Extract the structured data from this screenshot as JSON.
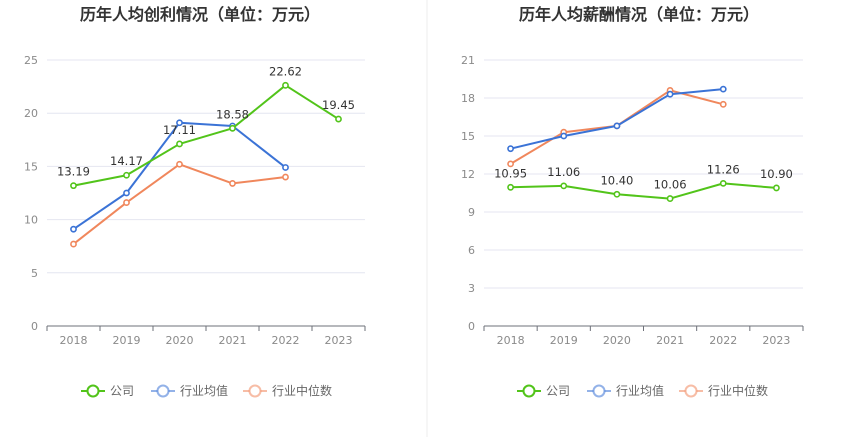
{
  "colors": {
    "company": "#52c41a",
    "industry_avg": "#3b73d6",
    "industry_median": "#f0875c",
    "grid": "#e4e6f0",
    "divider": "#eeeeee"
  },
  "legend": {
    "company": "公司",
    "industry_avg": "行业均值",
    "industry_median": "行业中位数"
  },
  "chart_data": [
    {
      "type": "line",
      "title": "历年人均创利情况（单位：万元）",
      "categories": [
        "2018",
        "2019",
        "2020",
        "2021",
        "2022",
        "2023"
      ],
      "ylim": [
        0,
        25
      ],
      "yticks": [
        0,
        5,
        10,
        15,
        20,
        25
      ],
      "grid": true,
      "legend_position": "bottom",
      "series": [
        {
          "name": "公司",
          "key": "company",
          "values": [
            13.19,
            14.17,
            17.11,
            18.58,
            22.62,
            19.45
          ],
          "labels": [
            "13.19",
            "14.17",
            "17.11",
            "18.58",
            "22.62",
            "19.45"
          ]
        },
        {
          "name": "行业均值",
          "key": "industry_avg",
          "values": [
            9.1,
            12.5,
            19.1,
            18.8,
            14.9,
            null
          ]
        },
        {
          "name": "行业中位数",
          "key": "industry_median",
          "values": [
            7.7,
            11.6,
            15.2,
            13.4,
            14.0,
            null
          ]
        }
      ]
    },
    {
      "type": "line",
      "title": "历年人均薪酬情况（单位：万元）",
      "categories": [
        "2018",
        "2019",
        "2020",
        "2021",
        "2022",
        "2023"
      ],
      "ylim": [
        0,
        21
      ],
      "yticks": [
        0,
        3,
        6,
        9,
        12,
        15,
        18,
        21
      ],
      "grid": true,
      "legend_position": "bottom",
      "series": [
        {
          "name": "公司",
          "key": "company",
          "values": [
            10.95,
            11.06,
            10.4,
            10.06,
            11.26,
            10.9
          ],
          "labels": [
            "10.95",
            "11.06",
            "10.40",
            "10.06",
            "11.26",
            "10.90"
          ]
        },
        {
          "name": "行业均值",
          "key": "industry_avg",
          "values": [
            14.0,
            15.0,
            15.8,
            18.3,
            18.7,
            null
          ]
        },
        {
          "name": "行业中位数",
          "key": "industry_median",
          "values": [
            12.8,
            15.3,
            15.8,
            18.6,
            17.5,
            null
          ]
        }
      ]
    }
  ]
}
